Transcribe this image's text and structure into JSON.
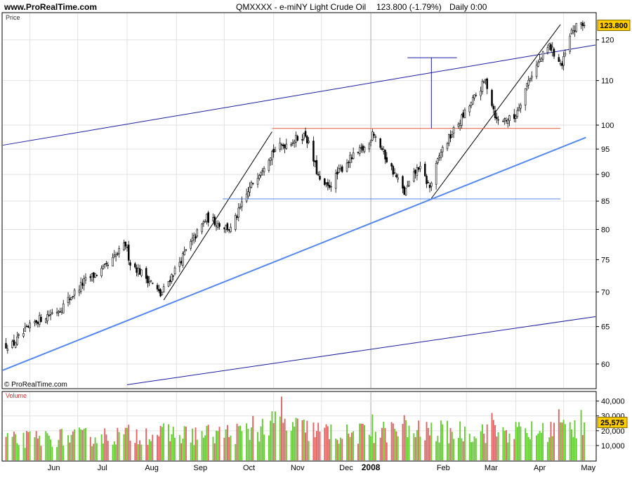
{
  "header": {
    "site": "www.ProRealTime.com",
    "instrument": "QMXXXX - e-miNY Light Crude Oil",
    "last": "123.800 (-1.79%)",
    "period": "Daily  0:00"
  },
  "price_panel": {
    "label": "Price",
    "copyright": "© ProRealTime.com",
    "last_price_tag": "123.800"
  },
  "volume_panel": {
    "label": "Volume",
    "last_volume_tag": "25,575"
  },
  "colors": {
    "up_volume": "#66cc33",
    "down_volume": "#e06666",
    "candle": "#000000",
    "channel_dark": "#1a1aa0",
    "channel_light": "#5588ee",
    "resistance": "#e05a3a",
    "support": "#5588ee",
    "tag": "#ffcc00"
  },
  "chart_data": [
    {
      "type": "candlestick",
      "title": "QMXXXX - e-miNY Light Crude Oil",
      "ylabel": "Price",
      "yscale": "log",
      "ylim": [
        57,
        127
      ],
      "y_ticks": [
        60,
        65,
        70,
        75,
        80,
        85,
        90,
        95,
        100,
        110,
        120
      ],
      "x_labels": [
        "Jun",
        "Jul",
        "Aug",
        "Sep",
        "Oct",
        "Nov",
        "Dec",
        "2008",
        "Feb",
        "Mar",
        "Apr",
        "May"
      ],
      "x_range": [
        "2007-05-15",
        "2008-05-21"
      ],
      "grid": true,
      "last_value": 123.8,
      "close_path": [
        {
          "date": "2007-05-21",
          "close": 62.5
        },
        {
          "date": "2007-06-05",
          "close": 65.8
        },
        {
          "date": "2007-06-20",
          "close": 67.5
        },
        {
          "date": "2007-07-05",
          "close": 71.5
        },
        {
          "date": "2007-07-20",
          "close": 74.0
        },
        {
          "date": "2007-07-31",
          "close": 77.5
        },
        {
          "date": "2007-08-03",
          "close": 74.5
        },
        {
          "date": "2007-08-16",
          "close": 71.5
        },
        {
          "date": "2007-08-22",
          "close": 69.5
        },
        {
          "date": "2007-09-05",
          "close": 75.5
        },
        {
          "date": "2007-09-20",
          "close": 82.0
        },
        {
          "date": "2007-10-05",
          "close": 80.0
        },
        {
          "date": "2007-10-19",
          "close": 88.5
        },
        {
          "date": "2007-10-31",
          "close": 94.5
        },
        {
          "date": "2007-11-08",
          "close": 96.0
        },
        {
          "date": "2007-11-21",
          "close": 98.0
        },
        {
          "date": "2007-11-30",
          "close": 88.5
        },
        {
          "date": "2007-12-05",
          "close": 87.5
        },
        {
          "date": "2007-12-17",
          "close": 92.5
        },
        {
          "date": "2007-12-31",
          "close": 96.0
        },
        {
          "date": "2008-01-02",
          "close": 99.0
        },
        {
          "date": "2008-01-10",
          "close": 93.5
        },
        {
          "date": "2008-01-22",
          "close": 86.5
        },
        {
          "date": "2008-01-31",
          "close": 91.5
        },
        {
          "date": "2008-02-07",
          "close": 87.5
        },
        {
          "date": "2008-02-14",
          "close": 94.5
        },
        {
          "date": "2008-02-28",
          "close": 102.0
        },
        {
          "date": "2008-03-13",
          "close": 110.0
        },
        {
          "date": "2008-03-20",
          "close": 101.0
        },
        {
          "date": "2008-03-31",
          "close": 101.5
        },
        {
          "date": "2008-04-10",
          "close": 111.0
        },
        {
          "date": "2008-04-22",
          "close": 118.5
        },
        {
          "date": "2008-04-30",
          "close": 113.5
        },
        {
          "date": "2008-05-06",
          "close": 122.0
        },
        {
          "date": "2008-05-12",
          "close": 124.5
        },
        {
          "date": "2008-05-14",
          "close": 123.8
        }
      ],
      "trendlines": [
        {
          "name": "channel-upper",
          "color": "#1a1aa0",
          "from": {
            "date": "2007-05-15",
            "value": 95.8
          },
          "to": {
            "date": "2008-05-21",
            "value": 118.7
          }
        },
        {
          "name": "channel-lower",
          "color": "#1a1aa0",
          "from": {
            "date": "2007-08-01",
            "value": 57.4
          },
          "to": {
            "date": "2008-05-21",
            "value": 66.4
          }
        },
        {
          "name": "support-trend",
          "color": "#5588ee",
          "from": {
            "date": "2007-05-15",
            "value": 59.2
          },
          "to": {
            "date": "2008-05-15",
            "value": 97.4
          }
        },
        {
          "name": "steep-trend-1",
          "color": "#000000",
          "from": {
            "date": "2007-08-24",
            "value": 68.8
          },
          "to": {
            "date": "2007-10-31",
            "value": 98.6
          }
        },
        {
          "name": "steep-trend-2",
          "color": "#000000",
          "from": {
            "date": "2008-02-08",
            "value": 85.5
          },
          "to": {
            "date": "2008-04-29",
            "value": 124.0
          }
        },
        {
          "name": "resistance",
          "color": "#e05a3a",
          "from": {
            "date": "2007-10-31",
            "value": 99.3
          },
          "to": {
            "date": "2008-04-29",
            "value": 99.3
          }
        },
        {
          "name": "support",
          "color": "#5588ee",
          "from": {
            "date": "2007-09-30",
            "value": 85.4
          },
          "to": {
            "date": "2008-04-29",
            "value": 85.4
          }
        },
        {
          "name": "target-cap",
          "color": "#1a1aa0",
          "from": {
            "date": "2008-01-24",
            "value": 115.5
          },
          "to": {
            "date": "2008-02-24",
            "value": 115.5
          }
        },
        {
          "name": "target-projection",
          "color": "#1a1aa0",
          "from": {
            "date": "2008-02-08",
            "value": 115.5
          },
          "to": {
            "date": "2008-02-08",
            "value": 99.3
          }
        }
      ]
    },
    {
      "type": "bar",
      "title": "Volume",
      "ylim": [
        0,
        46000
      ],
      "y_ticks": [
        10000,
        20000,
        30000,
        40000
      ],
      "y_tick_labels": [
        "10,000",
        "20,000",
        "30,000",
        "40,000"
      ],
      "last_value": 25575,
      "up_color": "#66cc33",
      "down_color": "#e06666",
      "volume_path": [
        {
          "date": "2007-05-15",
          "volume": 14000
        },
        {
          "date": "2007-06-15",
          "volume": 16000
        },
        {
          "date": "2007-07-15",
          "volume": 17000
        },
        {
          "date": "2007-08-15",
          "volume": 19000
        },
        {
          "date": "2007-09-15",
          "volume": 18000
        },
        {
          "date": "2007-10-15",
          "volume": 20000
        },
        {
          "date": "2007-11-05",
          "volume": 26000
        },
        {
          "date": "2007-11-20",
          "volume": 22000
        },
        {
          "date": "2007-12-15",
          "volume": 18000
        },
        {
          "date": "2008-01-15",
          "volume": 21000
        },
        {
          "date": "2008-02-15",
          "volume": 20000
        },
        {
          "date": "2008-03-15",
          "volume": 21000
        },
        {
          "date": "2008-04-15",
          "volume": 20000
        },
        {
          "date": "2008-05-14",
          "volume": 25575
        }
      ],
      "spikes": [
        {
          "date": "2007-11-06",
          "volume": 43000
        },
        {
          "date": "2007-11-02",
          "volume": 33000
        },
        {
          "date": "2007-10-19",
          "volume": 30000
        },
        {
          "date": "2008-04-28",
          "volume": 34500
        },
        {
          "date": "2008-05-12",
          "volume": 34000
        },
        {
          "date": "2008-01-22",
          "volume": 30500
        },
        {
          "date": "2008-03-17",
          "volume": 32000
        },
        {
          "date": "2008-01-02",
          "volume": 31000
        }
      ]
    }
  ]
}
